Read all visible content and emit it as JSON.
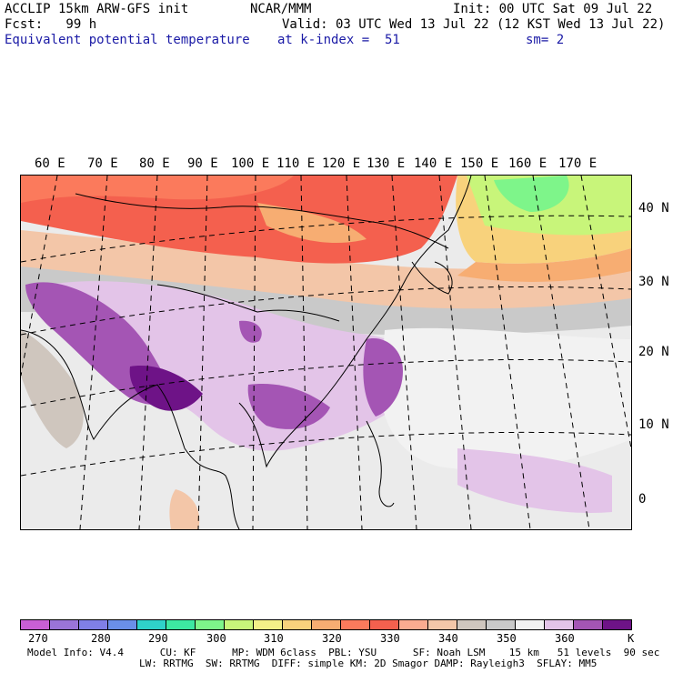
{
  "header": {
    "model_title": "ACCLIP 15km ARW-GFS init",
    "org": "NCAR/MMM",
    "init": "Init: 00 UTC Sat 09 Jul 22",
    "fcst": "Fcst:   99 h",
    "valid": "Valid: 03 UTC Wed 13 Jul 22 (12 KST Wed 13 Jul 22)",
    "field": "Equivalent potential temperature",
    "level": "at k-index =  51",
    "smooth": "sm= 2"
  },
  "map": {
    "lon_labels": [
      "60 E",
      "70 E",
      "80 E",
      "90 E",
      "100 E",
      "110 E",
      "120 E",
      "130 E",
      "140 E",
      "150 E",
      "160 E",
      "170 E"
    ],
    "lat_labels": [
      "40 N",
      "30 N",
      "20 N",
      "10 N",
      "0"
    ]
  },
  "colorbar": {
    "colors": [
      "#c95fd5",
      "#9a74d8",
      "#7f7fe6",
      "#6a8fe8",
      "#2fd2c9",
      "#3de8a2",
      "#7ef58a",
      "#c8f57a",
      "#f3ef88",
      "#f8d27c",
      "#f7ad72",
      "#fb7a5c",
      "#f4604e",
      "#fbab90",
      "#f3c6a8",
      "#cfc6be",
      "#c9c9c9",
      "#f2f2f2",
      "#e3c4e8",
      "#a455b4",
      "#6e1387"
    ],
    "ticks": [
      "270",
      "280",
      "290",
      "300",
      "310",
      "320",
      "330",
      "340",
      "350",
      "360"
    ],
    "unit": "K"
  },
  "footer": {
    "line1": "Model Info: V4.4      CU: KF      MP: WDM 6class  PBL: YSU      SF: Noah LSM    15 km   51 levels  90 sec",
    "line2": "LW: RRTMG  SW: RRTMG  DIFF: simple KM: 2D Smagor DAMP: Rayleigh3  SFLAY: MM5"
  },
  "colors": {
    "title_black": "#000000",
    "subtitle_blue": "#1a1aa6"
  }
}
